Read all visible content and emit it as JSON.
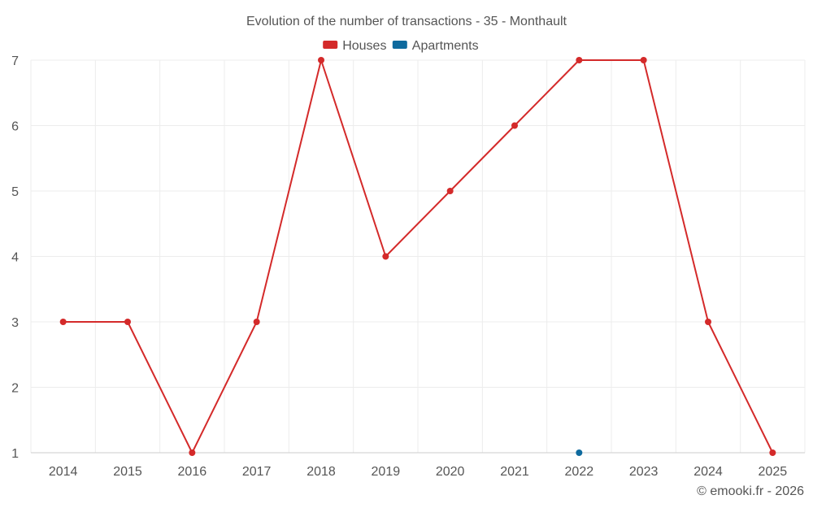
{
  "chart_data": {
    "type": "line",
    "title": "Evolution of the number of transactions - 35 - Monthault",
    "categories": [
      "2014",
      "2015",
      "2016",
      "2017",
      "2018",
      "2019",
      "2020",
      "2021",
      "2022",
      "2023",
      "2024",
      "2025"
    ],
    "series": [
      {
        "name": "Houses",
        "color": "#d42a2a",
        "values": [
          3,
          3,
          1,
          3,
          7,
          4,
          5,
          6,
          7,
          7,
          3,
          1
        ]
      },
      {
        "name": "Apartments",
        "color": "#0e6a9e",
        "values": [
          null,
          null,
          null,
          null,
          null,
          null,
          null,
          null,
          1,
          null,
          null,
          null
        ]
      }
    ],
    "yticks": [
      1,
      2,
      3,
      4,
      5,
      6,
      7
    ],
    "ylim": [
      1,
      7
    ],
    "xlabel": "",
    "ylabel": "",
    "legend_position": "top-center",
    "grid": true
  },
  "credit": "© emooki.fr - 2026"
}
